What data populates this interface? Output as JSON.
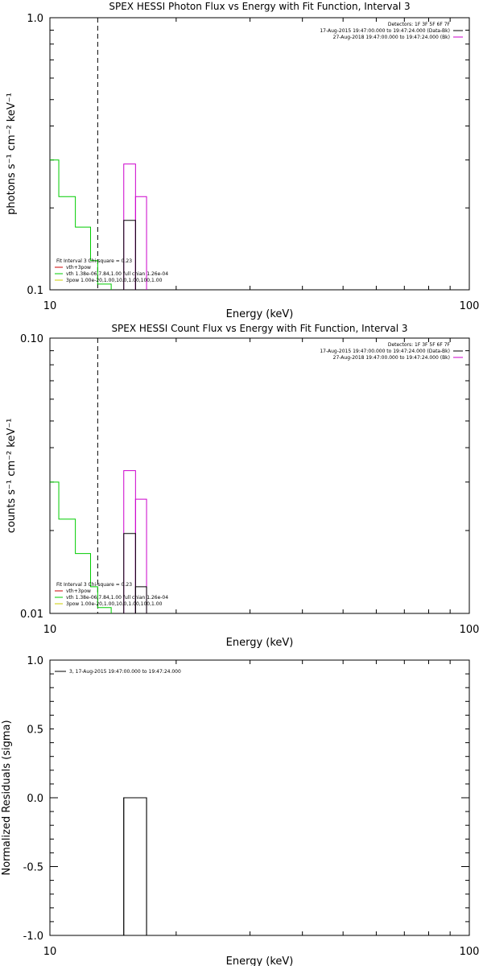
{
  "chart_data": [
    {
      "type": "line",
      "title": "SPEX HESSI Photon Flux vs Energy with Fit Function, Interval 3",
      "xlabel": "Energy (keV)",
      "ylabel": "photons s⁻¹ cm⁻² keV⁻¹",
      "x_scale": "log",
      "y_scale": "log",
      "xlim": [
        10,
        100
      ],
      "ylim": [
        0.1,
        1.0
      ],
      "x_ticks": [
        "10",
        "100"
      ],
      "y_ticks": [
        "0.1",
        "1.0"
      ],
      "dashed_line_x": 13,
      "legend_top_right": [
        {
          "text": "Detectors: 1F 3F 5F 6F 7F",
          "color": "#000000"
        },
        {
          "text": "17-Aug-2015 19:47:00.000 to 19:47:24.000 (Data-Bk)",
          "color": "#000000"
        },
        {
          "text": "27-Aug-2018 19:47:00.000 to 19:47:24.000 (Bk)",
          "color": "#cc00cc"
        }
      ],
      "legend_bottom_left": [
        {
          "text": "Fit Interval 3   Chi-square = 0.23",
          "color": "#000000"
        },
        {
          "text": "vth+3pow",
          "color": "#cc0000"
        },
        {
          "text": "vth 1.38e-06,7.84,1.00  full chian 1.26e-04",
          "color": "#00cc00"
        },
        {
          "text": "3pow 1.00e-20,1.00,10.0,1.00,100,1.00",
          "color": "#cccc00"
        }
      ],
      "series": [
        {
          "color": "#00cc00",
          "x": [
            10,
            10.5,
            11.5,
            12.5,
            13,
            14
          ],
          "y": [
            0.3,
            0.22,
            0.17,
            0.128,
            0.105,
            0.085
          ]
        },
        {
          "color": "#cc00cc",
          "bins": [
            [
              15,
              16,
              0.29
            ],
            [
              16,
              17,
              0.22
            ]
          ]
        },
        {
          "color": "#000000",
          "bins": [
            [
              15,
              16,
              0.18
            ],
            [
              16,
              17,
              0.095
            ]
          ]
        }
      ]
    },
    {
      "type": "line",
      "title": "SPEX HESSI Count Flux vs Energy with Fit Function, Interval 3",
      "xlabel": "Energy (keV)",
      "ylabel": "counts s⁻¹ cm⁻² keV⁻¹",
      "x_scale": "log",
      "y_scale": "log",
      "xlim": [
        10,
        100
      ],
      "ylim": [
        0.01,
        0.1
      ],
      "x_ticks": [
        "10",
        "100"
      ],
      "y_ticks": [
        "0.01",
        "0.10"
      ],
      "dashed_line_x": 13,
      "legend_top_right": [
        {
          "text": "Detectors: 1F 3F 5F 6F 7F",
          "color": "#000000"
        },
        {
          "text": "17-Aug-2015 19:47:00.000 to 19:47:24.000 (Data-Bk)",
          "color": "#000000"
        },
        {
          "text": "27-Aug-2018 19:47:00.000 to 19:47:24.000 (Bk)",
          "color": "#cc00cc"
        }
      ],
      "legend_bottom_left": [
        {
          "text": "Fit Interval 3   Chi-square = 0.23",
          "color": "#000000"
        },
        {
          "text": "vth+3pow",
          "color": "#cc0000"
        },
        {
          "text": "vth 1.38e-06,7.84,1.00  full chian 1.26e-04",
          "color": "#00cc00"
        },
        {
          "text": "3pow 1.00e-20,1.00,10.0,1.00,100,1.00",
          "color": "#cccc00"
        }
      ],
      "series": [
        {
          "color": "#00cc00",
          "x": [
            10,
            10.5,
            11.5,
            12.5,
            13,
            14
          ],
          "y": [
            0.03,
            0.022,
            0.0165,
            0.0125,
            0.0105,
            0.0085
          ]
        },
        {
          "color": "#cc00cc",
          "bins": [
            [
              15,
              16,
              0.033
            ],
            [
              16,
              17,
              0.026
            ]
          ]
        },
        {
          "color": "#000000",
          "bins": [
            [
              15,
              16,
              0.0195
            ],
            [
              16,
              17,
              0.0125
            ]
          ]
        }
      ]
    },
    {
      "type": "line",
      "title": "",
      "xlabel": "Energy (keV)",
      "ylabel": "Normalized Residuals (sigma)",
      "x_scale": "log",
      "y_scale": "linear",
      "xlim": [
        10,
        100
      ],
      "ylim": [
        -1.0,
        1.0
      ],
      "x_ticks": [
        "10",
        "100"
      ],
      "y_ticks": [
        "-1.0",
        "-0.5",
        "0.0",
        "0.5",
        "1.0"
      ],
      "legend_top_left": [
        {
          "text": "3, 17-Aug-2015 19:47:00.000 to 19:47:24.000",
          "color": "#000000"
        }
      ],
      "series": [
        {
          "color": "#000000",
          "bins": [
            [
              15,
              17,
              0.0
            ]
          ]
        }
      ]
    }
  ]
}
